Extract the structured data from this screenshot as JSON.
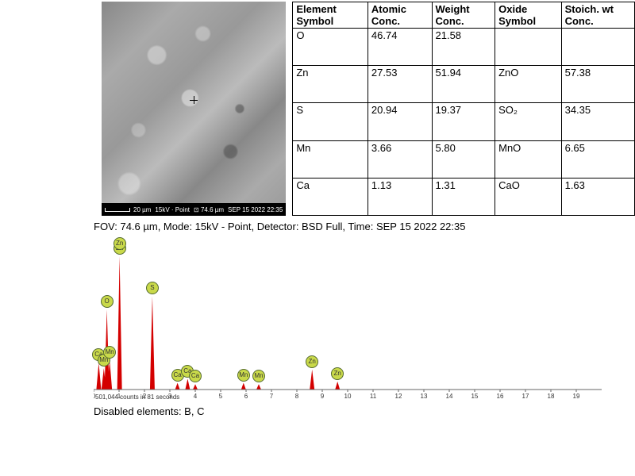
{
  "sem": {
    "scale_text": "20 µm",
    "mode_text": "15kV · Point",
    "fov_text": "⊡ 74.6 µm",
    "time_text": "SEP 15 2022 22:35"
  },
  "table": {
    "headers": [
      "Element Symbol",
      "Atomic Conc.",
      "Weight Conc.",
      "Oxide Symbol",
      "Stoich. wt Conc."
    ],
    "rows": [
      {
        "el": "O",
        "atomic": "46.74",
        "weight": "21.58",
        "oxide": "",
        "stoich": ""
      },
      {
        "el": "Zn",
        "atomic": "27.53",
        "weight": "51.94",
        "oxide": "ZnO",
        "stoich": "57.38"
      },
      {
        "el": "S",
        "atomic": "20.94",
        "weight": "19.37",
        "oxide": "SO₂",
        "stoich": "34.35"
      },
      {
        "el": "Mn",
        "atomic": "3.66",
        "weight": "5.80",
        "oxide": "MnO",
        "stoich": "6.65"
      },
      {
        "el": "Ca",
        "atomic": "1.13",
        "weight": "1.31",
        "oxide": "CaO",
        "stoich": "1.63"
      }
    ]
  },
  "caption": "FOV: 74.6 µm, Mode: 15kV - Point, Detector: BSD Full, Time: SEP 15 2022 22:35",
  "spectrum": {
    "type": "eds-spectrum",
    "x_keV_max": 20,
    "xticks": [
      0,
      1,
      2,
      3,
      4,
      5,
      6,
      7,
      8,
      9,
      10,
      11,
      12,
      13,
      14,
      15,
      16,
      17,
      18,
      19
    ],
    "counts_text": "501,044 counts in 81 seconds",
    "fill_color": "#d40000",
    "axis_color": "#666666",
    "tick_fontsize": 8,
    "label_bg": "#c9d94a",
    "label_border": "#556b2f",
    "peaks": [
      {
        "x_keV": 0.2,
        "h": 0.2,
        "label": "Ca"
      },
      {
        "x_keV": 0.4,
        "h": 0.16,
        "label": "Mn"
      },
      {
        "x_keV": 0.52,
        "h": 0.6,
        "label": "O"
      },
      {
        "x_keV": 0.63,
        "h": 0.22,
        "label": "Mn"
      },
      {
        "x_keV": 1.02,
        "h": 1.0,
        "label": "Zn"
      },
      {
        "x_keV": 1.02,
        "h": 0.94,
        "label": "Zn",
        "offset_y": 16
      },
      {
        "x_keV": 2.31,
        "h": 0.7,
        "label": "S"
      },
      {
        "x_keV": 3.3,
        "h": 0.05,
        "label": "Ca"
      },
      {
        "x_keV": 3.7,
        "h": 0.08,
        "label": "Ca"
      },
      {
        "x_keV": 4.0,
        "h": 0.04,
        "label": "Ca"
      },
      {
        "x_keV": 5.9,
        "h": 0.05,
        "label": "Mn"
      },
      {
        "x_keV": 6.5,
        "h": 0.04,
        "label": "Mn"
      },
      {
        "x_keV": 8.6,
        "h": 0.15,
        "label": "Zn"
      },
      {
        "x_keV": 9.6,
        "h": 0.06,
        "label": "Zn"
      }
    ]
  },
  "disabled": "Disabled elements: B, C"
}
